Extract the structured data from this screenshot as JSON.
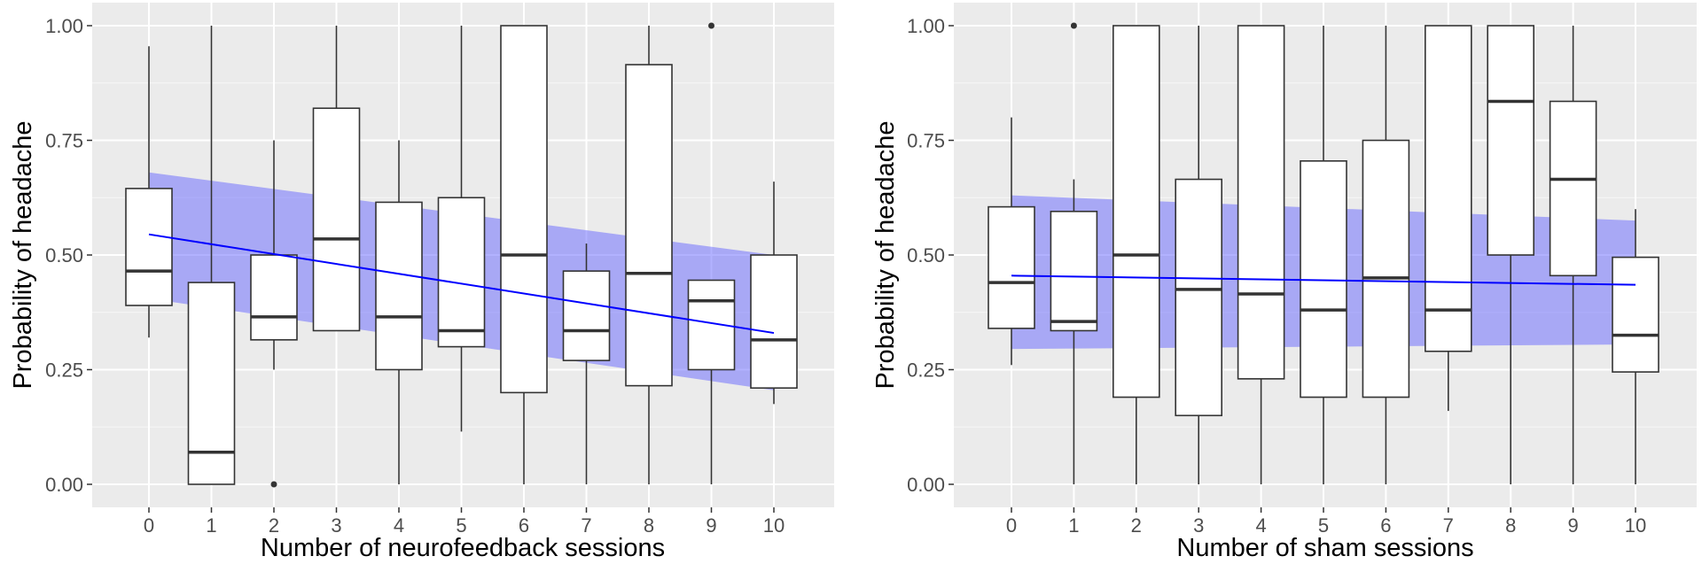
{
  "colors": {
    "panel_bg": "#ebebeb",
    "grid_major": "#ffffff",
    "box_fill": "#ffffff",
    "box_line": "#333333",
    "fit_line": "#0000ff",
    "band_fill": "#6666ff"
  },
  "chart_data": [
    {
      "type": "boxplot",
      "xlabel": "Number of neurofeedback sessions",
      "ylabel": "Probability of headache",
      "categories": [
        "0",
        "1",
        "2",
        "3",
        "4",
        "5",
        "6",
        "7",
        "8",
        "9",
        "10"
      ],
      "ylim": [
        -0.05,
        1.05
      ],
      "yticks": [
        "0.00",
        "0.25",
        "0.50",
        "0.75",
        "1.00"
      ],
      "grid": true,
      "boxes": [
        {
          "x": 0,
          "whisker_low": 0.32,
          "q1": 0.39,
          "median": 0.465,
          "q3": 0.645,
          "whisker_high": 0.955,
          "outliers": []
        },
        {
          "x": 1,
          "whisker_low": 0.0,
          "q1": 0.0,
          "median": 0.07,
          "q3": 0.44,
          "whisker_high": 1.0,
          "outliers": []
        },
        {
          "x": 2,
          "whisker_low": 0.25,
          "q1": 0.315,
          "median": 0.365,
          "q3": 0.5,
          "whisker_high": 0.75,
          "outliers": [
            0.0
          ]
        },
        {
          "x": 3,
          "whisker_low": 0.335,
          "q1": 0.335,
          "median": 0.535,
          "q3": 0.82,
          "whisker_high": 1.0,
          "outliers": []
        },
        {
          "x": 4,
          "whisker_low": 0.0,
          "q1": 0.25,
          "median": 0.365,
          "q3": 0.615,
          "whisker_high": 0.75,
          "outliers": []
        },
        {
          "x": 5,
          "whisker_low": 0.115,
          "q1": 0.3,
          "median": 0.335,
          "q3": 0.625,
          "whisker_high": 1.0,
          "outliers": []
        },
        {
          "x": 6,
          "whisker_low": 0.0,
          "q1": 0.2,
          "median": 0.5,
          "q3": 1.0,
          "whisker_high": 1.0,
          "outliers": []
        },
        {
          "x": 7,
          "whisker_low": 0.0,
          "q1": 0.27,
          "median": 0.335,
          "q3": 0.465,
          "whisker_high": 0.525,
          "outliers": []
        },
        {
          "x": 8,
          "whisker_low": 0.0,
          "q1": 0.215,
          "median": 0.46,
          "q3": 0.915,
          "whisker_high": 1.0,
          "outliers": []
        },
        {
          "x": 9,
          "whisker_low": 0.0,
          "q1": 0.25,
          "median": 0.4,
          "q3": 0.445,
          "whisker_high": 0.445,
          "outliers": [
            1.0
          ]
        },
        {
          "x": 10,
          "whisker_low": 0.175,
          "q1": 0.21,
          "median": 0.315,
          "q3": 0.5,
          "whisker_high": 0.66,
          "outliers": []
        }
      ],
      "fit": {
        "x": [
          0,
          10
        ],
        "y": [
          0.545,
          0.33
        ]
      },
      "band": {
        "x": [
          0,
          10
        ],
        "lower": [
          0.405,
          0.205
        ],
        "upper": [
          0.68,
          0.5
        ]
      }
    },
    {
      "type": "boxplot",
      "xlabel": "Number of sham sessions",
      "ylabel": "Probability of headache",
      "categories": [
        "0",
        "1",
        "2",
        "3",
        "4",
        "5",
        "6",
        "7",
        "8",
        "9",
        "10"
      ],
      "ylim": [
        -0.05,
        1.05
      ],
      "yticks": [
        "0.00",
        "0.25",
        "0.50",
        "0.75",
        "1.00"
      ],
      "grid": true,
      "boxes": [
        {
          "x": 0,
          "whisker_low": 0.26,
          "q1": 0.34,
          "median": 0.44,
          "q3": 0.605,
          "whisker_high": 0.8,
          "outliers": []
        },
        {
          "x": 1,
          "whisker_low": 0.0,
          "q1": 0.335,
          "median": 0.355,
          "q3": 0.595,
          "whisker_high": 0.665,
          "outliers": [
            1.0
          ]
        },
        {
          "x": 2,
          "whisker_low": 0.0,
          "q1": 0.19,
          "median": 0.5,
          "q3": 1.0,
          "whisker_high": 1.0,
          "outliers": []
        },
        {
          "x": 3,
          "whisker_low": 0.0,
          "q1": 0.15,
          "median": 0.425,
          "q3": 0.665,
          "whisker_high": 1.0,
          "outliers": []
        },
        {
          "x": 4,
          "whisker_low": 0.0,
          "q1": 0.23,
          "median": 0.415,
          "q3": 1.0,
          "whisker_high": 1.0,
          "outliers": []
        },
        {
          "x": 5,
          "whisker_low": 0.0,
          "q1": 0.19,
          "median": 0.38,
          "q3": 0.705,
          "whisker_high": 1.0,
          "outliers": []
        },
        {
          "x": 6,
          "whisker_low": 0.0,
          "q1": 0.19,
          "median": 0.45,
          "q3": 0.75,
          "whisker_high": 1.0,
          "outliers": []
        },
        {
          "x": 7,
          "whisker_low": 0.16,
          "q1": 0.29,
          "median": 0.38,
          "q3": 1.0,
          "whisker_high": 1.0,
          "outliers": []
        },
        {
          "x": 8,
          "whisker_low": 0.0,
          "q1": 0.5,
          "median": 0.835,
          "q3": 1.0,
          "whisker_high": 1.0,
          "outliers": []
        },
        {
          "x": 9,
          "whisker_low": 0.0,
          "q1": 0.455,
          "median": 0.665,
          "q3": 0.835,
          "whisker_high": 1.0,
          "outliers": []
        },
        {
          "x": 10,
          "whisker_low": 0.0,
          "q1": 0.245,
          "median": 0.325,
          "q3": 0.495,
          "whisker_high": 0.6,
          "outliers": []
        }
      ],
      "fit": {
        "x": [
          0,
          10
        ],
        "y": [
          0.455,
          0.435
        ]
      },
      "band": {
        "x": [
          0,
          10
        ],
        "lower": [
          0.295,
          0.305
        ],
        "upper": [
          0.63,
          0.575
        ]
      }
    }
  ]
}
